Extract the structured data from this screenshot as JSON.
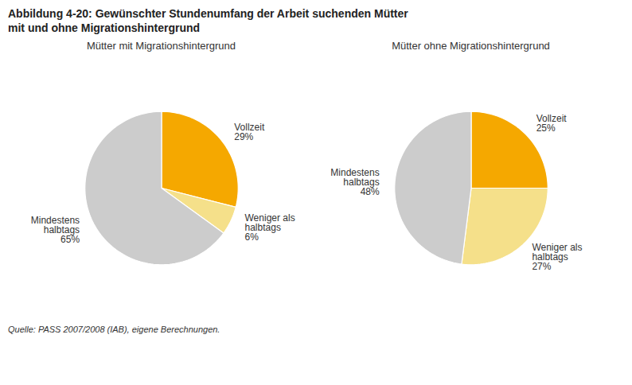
{
  "title": "Abbildung 4-20: Gewünschter Stundenumfang der Arbeit suchenden Mütter\nmit und ohne Migrationshintergrund",
  "caption": "Quelle: PASS 2007/2008 (IAB), eigene Berechnungen.",
  "chart_data": [
    {
      "type": "pie",
      "title": "Mütter mit Migrationshintergrund",
      "categories": [
        "Vollzeit",
        "Weniger als\nhalbtags",
        "Mindestens\nhalbtags"
      ],
      "values": [
        29,
        6,
        65
      ],
      "value_labels": [
        "29%",
        "6%",
        "65%"
      ],
      "colors": [
        "#f5a800",
        "#f5e08a",
        "#cccccc"
      ],
      "data_labels": true
    },
    {
      "type": "pie",
      "title": "Mütter ohne Migrationshintergrund",
      "categories": [
        "Vollzeit",
        "Weniger als\nhalbtags",
        "Mindestens\nhalbtags"
      ],
      "values": [
        25,
        27,
        48
      ],
      "value_labels": [
        "25%",
        "27%",
        "48%"
      ],
      "colors": [
        "#f5a800",
        "#f5e08a",
        "#cccccc"
      ],
      "data_labels": true
    }
  ]
}
